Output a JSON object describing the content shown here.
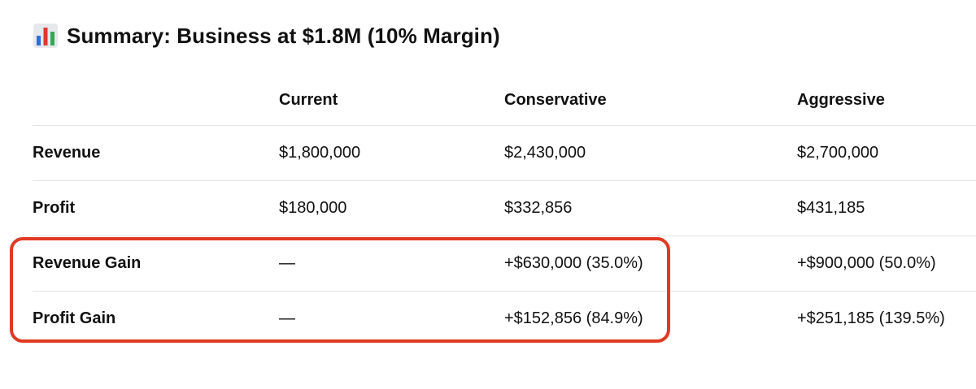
{
  "heading": {
    "icon": "bar-chart-icon",
    "text": "Summary: Business at $1.8M (10% Margin)"
  },
  "table": {
    "columns": [
      "",
      "Current",
      "Conservative",
      "Aggressive"
    ],
    "rows": [
      {
        "label": "Revenue",
        "current": "$1,800,000",
        "conservative": "$2,430,000",
        "aggressive": "$2,700,000"
      },
      {
        "label": "Profit",
        "current": "$180,000",
        "conservative": "$332,856",
        "aggressive": "$431,185"
      },
      {
        "label": "Revenue Gain",
        "current": "—",
        "conservative": "+$630,000 (35.0%)",
        "aggressive": "+$900,000 (50.0%)"
      },
      {
        "label": "Profit Gain",
        "current": "—",
        "conservative": "+$152,856 (84.9%)",
        "aggressive": "+$251,185 (139.5%)"
      }
    ]
  },
  "annotation": {
    "color": "#e03a22",
    "highlights_rows": [
      "Revenue Gain",
      "Profit Gain"
    ]
  }
}
